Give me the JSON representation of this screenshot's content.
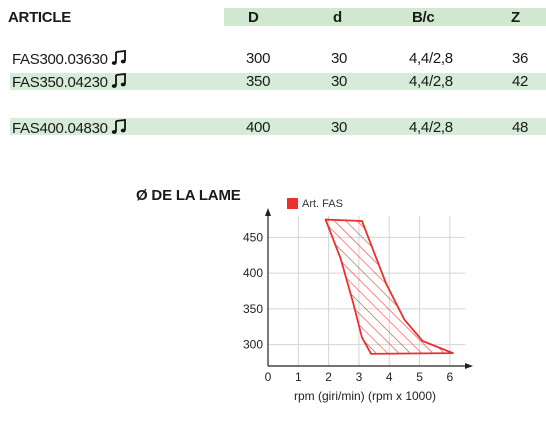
{
  "table": {
    "headers": {
      "article": "ARTICLE",
      "D": "D",
      "d": "d",
      "bc": "B/c",
      "z": "Z"
    },
    "rows": [
      {
        "article": "FAS300.03630",
        "D": "300",
        "d": "30",
        "bc": "4,4/2,8",
        "z": "36",
        "icon": "music-note-icon"
      },
      {
        "article": "FAS350.04230",
        "D": "350",
        "d": "30",
        "bc": "4,4/2,8",
        "z": "42",
        "icon": "music-note-icon"
      },
      {
        "article": "FAS400.04830",
        "D": "400",
        "d": "30",
        "bc": "4,4/2,8",
        "z": "48",
        "icon": "music-note-icon"
      }
    ],
    "colors": {
      "header_band": "#cfe8cf",
      "row_band": "#d6ebd8"
    }
  },
  "chart_title": "Ø DE LA LAME",
  "chart_data": {
    "type": "area",
    "title": "Ø DE LA LAME",
    "xlabel": "rpm (giri/min) (rpm x 1000)",
    "ylabel": "",
    "x_ticks": [
      0,
      1,
      2,
      3,
      4,
      5,
      6
    ],
    "y_ticks": [
      300,
      350,
      400,
      450
    ],
    "xlim": [
      0,
      6.5
    ],
    "ylim": [
      270,
      480
    ],
    "grid": true,
    "legend_position": "top-right",
    "series": [
      {
        "name": "Art. FAS",
        "color": "#e8312f",
        "fill": "hatched",
        "polygon": [
          {
            "x": 1.9,
            "y": 475
          },
          {
            "x": 3.1,
            "y": 473
          },
          {
            "x": 3.4,
            "y": 440
          },
          {
            "x": 3.9,
            "y": 385
          },
          {
            "x": 4.5,
            "y": 335
          },
          {
            "x": 5.1,
            "y": 305
          },
          {
            "x": 6.1,
            "y": 288
          },
          {
            "x": 3.4,
            "y": 287
          },
          {
            "x": 3.1,
            "y": 310
          },
          {
            "x": 2.8,
            "y": 360
          },
          {
            "x": 2.4,
            "y": 420
          }
        ]
      }
    ]
  }
}
